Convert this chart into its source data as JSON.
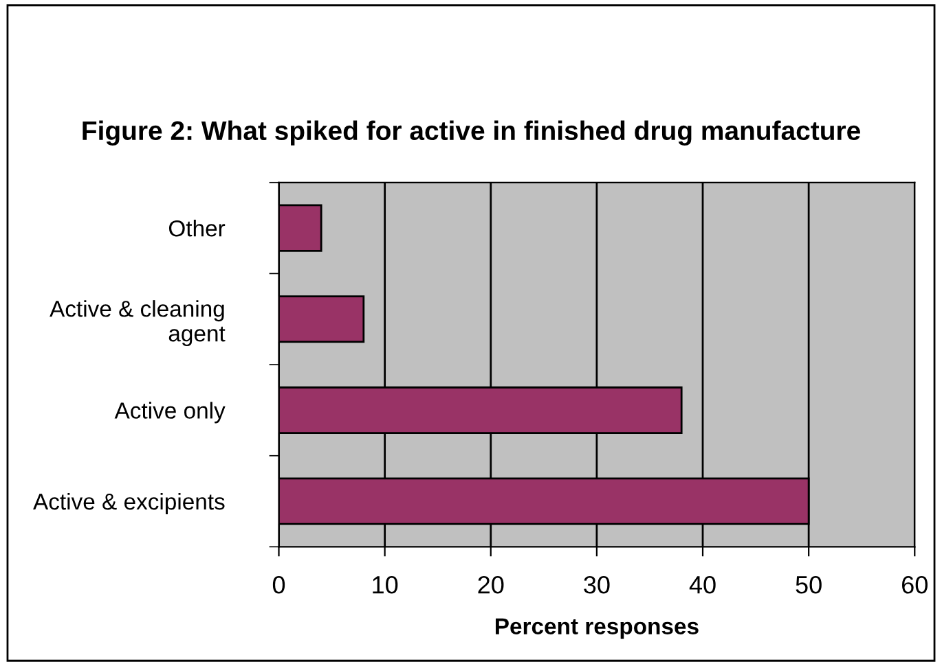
{
  "chart_data": {
    "type": "bar",
    "orientation": "horizontal",
    "title": "Figure 2: What spiked for active in finished drug manufacture",
    "xlabel": "Percent responses",
    "categories": [
      "Other",
      "Active & cleaning\nagent",
      "Active only",
      "Active & excipients"
    ],
    "values": [
      4,
      8,
      38,
      50
    ],
    "color": "#993366",
    "xlim": [
      0,
      60
    ],
    "xticks": [
      0,
      10,
      20,
      30,
      40,
      50,
      60
    ],
    "grid": "x",
    "legend": false
  }
}
